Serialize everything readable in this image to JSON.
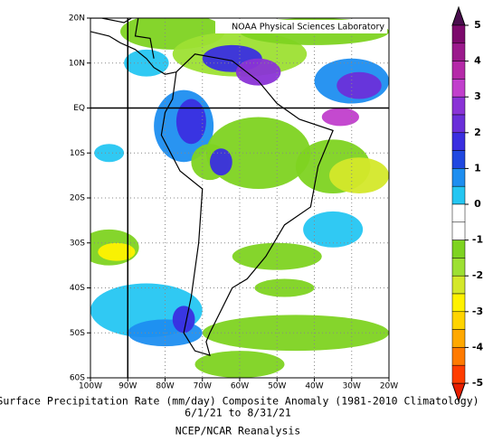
{
  "map": {
    "attribution": "NOAA Physical Sciences Laboratory",
    "lon_labels": [
      "100W",
      "90W",
      "80W",
      "70W",
      "60W",
      "50W",
      "40W",
      "30W",
      "20W"
    ],
    "lat_labels": [
      "20N",
      "10N",
      "EQ",
      "10S",
      "20S",
      "30S",
      "40S",
      "50S",
      "60S"
    ],
    "colorbar": {
      "ticks": [
        5,
        4,
        3,
        2,
        1,
        0,
        -1,
        -2,
        -3,
        -4,
        -5
      ],
      "over_color": "#4a0e4e",
      "under_color": "#e81e00",
      "colors": [
        "#7c0a6c",
        "#9b1a8c",
        "#b52aa8",
        "#c13fcc",
        "#8a33d6",
        "#6a2fd9",
        "#3a2ee0",
        "#2048e0",
        "#1e8ef0",
        "#25c6f2",
        "#ffffff",
        "#ffffff",
        "#7ed321",
        "#9de033",
        "#d4e82a",
        "#fff200",
        "#ffd400",
        "#ffa800",
        "#ff7a00",
        "#ff3d00"
      ]
    },
    "title": "Surface Precipitation Rate (mm/day) Composite Anomaly (1981-2010 Climatology)",
    "date_range": "6/1/21   to 8/31/21",
    "source": "NCEP/NCAR Reanalysis"
  }
}
